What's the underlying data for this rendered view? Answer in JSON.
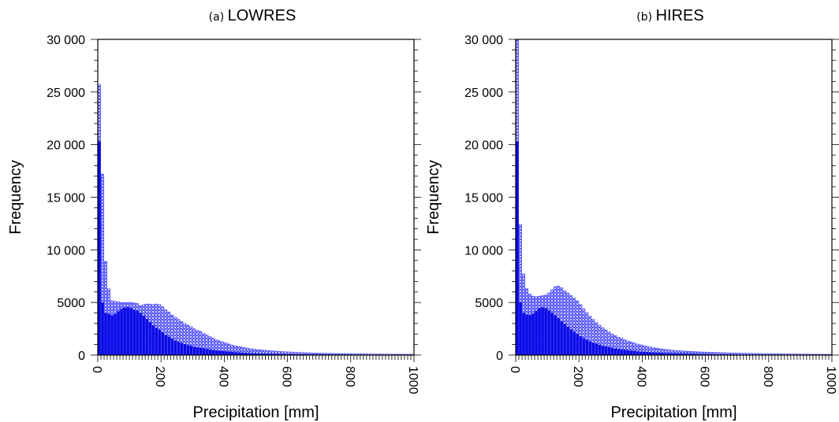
{
  "chart_data": [
    {
      "type": "bar",
      "panel_letter": "(a)",
      "title": "LOWRES",
      "xlabel": "Precipitation [mm]",
      "ylabel": "Frequency",
      "xlim": [
        0,
        1000
      ],
      "ylim": [
        0,
        30000
      ],
      "bin_width": 10,
      "xticks": [
        0,
        200,
        400,
        600,
        800,
        1000
      ],
      "yticks": [
        0,
        5000,
        10000,
        15000,
        20000,
        25000,
        30000
      ],
      "xtick_labels": [
        "0",
        "200",
        "400",
        "600",
        "800",
        "1000"
      ],
      "ytick_labels": [
        "0",
        "5000",
        "10 000",
        "15 000",
        "20 000",
        "25 000",
        "30 000"
      ],
      "series": [
        {
          "style": "hatched",
          "color": "#4a4aff",
          "x": [
            5,
            15,
            25,
            35,
            45,
            55,
            65,
            75,
            85,
            95,
            105,
            115,
            125,
            135,
            145,
            155,
            165,
            175,
            185,
            195,
            205,
            215,
            225,
            235,
            245,
            255,
            265,
            275,
            285,
            295,
            305,
            315,
            325,
            335,
            345,
            355,
            365,
            375,
            385,
            395,
            405,
            415,
            425,
            435,
            445,
            455,
            465,
            475,
            485,
            495,
            505,
            515,
            525,
            535,
            545,
            555,
            565,
            575,
            585,
            595,
            605,
            615,
            625,
            635,
            645,
            655,
            665,
            675,
            685,
            695,
            705,
            715,
            725,
            735,
            745,
            755,
            765,
            775,
            785,
            795,
            805,
            815,
            825,
            835,
            845,
            855,
            865,
            875,
            885,
            895,
            905,
            915,
            925,
            935,
            945,
            955,
            965,
            975,
            985,
            995
          ],
          "values": [
            25700,
            17200,
            8900,
            6300,
            5150,
            5100,
            5050,
            5000,
            5000,
            5000,
            5000,
            4950,
            4900,
            4700,
            4800,
            4850,
            4850,
            4800,
            4850,
            4800,
            4600,
            4300,
            4100,
            3800,
            3600,
            3400,
            3200,
            3000,
            2850,
            2700,
            2500,
            2350,
            2250,
            2050,
            1900,
            1750,
            1600,
            1450,
            1350,
            1250,
            1150,
            1050,
            950,
            880,
            820,
            760,
            700,
            650,
            600,
            560,
            520,
            490,
            460,
            430,
            410,
            390,
            370,
            350,
            330,
            315,
            300,
            285,
            270,
            255,
            240,
            230,
            220,
            210,
            200,
            190,
            180,
            175,
            170,
            165,
            160,
            155,
            150,
            145,
            140,
            135,
            130,
            125,
            120,
            115,
            112,
            108,
            104,
            100,
            97,
            94,
            91,
            88,
            86,
            84,
            82,
            80,
            78,
            76,
            74,
            72
          ]
        },
        {
          "style": "solid",
          "color": "#0a0ae6",
          "x": [
            5,
            15,
            25,
            35,
            45,
            55,
            65,
            75,
            85,
            95,
            105,
            115,
            125,
            135,
            145,
            155,
            165,
            175,
            185,
            195,
            205,
            215,
            225,
            235,
            245,
            255,
            265,
            275,
            285,
            295,
            305,
            315,
            325,
            335,
            345,
            355,
            365,
            375,
            385,
            395,
            405,
            415,
            425,
            435,
            445,
            455,
            465,
            475,
            485,
            495,
            505,
            515,
            525,
            535,
            545,
            555,
            565,
            575,
            585,
            595,
            605,
            615,
            625,
            635,
            645,
            655,
            665,
            675,
            685,
            695,
            705,
            715,
            725,
            735,
            745,
            755,
            765,
            775,
            785,
            795,
            805,
            815,
            825,
            835,
            845,
            855,
            865,
            875,
            885,
            895,
            905,
            915,
            925,
            935,
            945,
            955,
            965,
            975,
            985,
            995
          ],
          "values": [
            20300,
            5000,
            4000,
            3900,
            3800,
            3900,
            4150,
            4400,
            4500,
            4550,
            4450,
            4300,
            4200,
            4000,
            3750,
            3450,
            3150,
            2850,
            2600,
            2400,
            2150,
            1900,
            1750,
            1550,
            1400,
            1250,
            1150,
            1050,
            950,
            880,
            800,
            740,
            680,
            630,
            580,
            530,
            490,
            450,
            415,
            380,
            350,
            320,
            295,
            272,
            250,
            232,
            215,
            200,
            186,
            174,
            163,
            153,
            144,
            136,
            129,
            122,
            116,
            110,
            105,
            100,
            95,
            91,
            87,
            83,
            79,
            76,
            73,
            70,
            67,
            64,
            61,
            59,
            57,
            55,
            53,
            51,
            49,
            47,
            45,
            44,
            43,
            42,
            41,
            40,
            39,
            38,
            37,
            36,
            35,
            34,
            33,
            32,
            31,
            30,
            29,
            28,
            27,
            26,
            25,
            24
          ]
        }
      ]
    },
    {
      "type": "bar",
      "panel_letter": "(b)",
      "title": "HIRES",
      "xlabel": "Precipitation [mm]",
      "ylabel": "Frequency",
      "xlim": [
        0,
        1000
      ],
      "ylim": [
        0,
        30000
      ],
      "bin_width": 10,
      "xticks": [
        0,
        200,
        400,
        600,
        800,
        1000
      ],
      "yticks": [
        0,
        5000,
        10000,
        15000,
        20000,
        25000,
        30000
      ],
      "xtick_labels": [
        "0",
        "200",
        "400",
        "600",
        "800",
        "1000"
      ],
      "ytick_labels": [
        "0",
        "5000",
        "10 000",
        "15 000",
        "20 000",
        "25 000",
        "30 000"
      ],
      "series": [
        {
          "style": "hatched",
          "color": "#4a4aff",
          "x": [
            5,
            15,
            25,
            35,
            45,
            55,
            65,
            75,
            85,
            95,
            105,
            115,
            125,
            135,
            145,
            155,
            165,
            175,
            185,
            195,
            205,
            215,
            225,
            235,
            245,
            255,
            265,
            275,
            285,
            295,
            305,
            315,
            325,
            335,
            345,
            355,
            365,
            375,
            385,
            395,
            405,
            415,
            425,
            435,
            445,
            455,
            465,
            475,
            485,
            495,
            505,
            515,
            525,
            535,
            545,
            555,
            565,
            575,
            585,
            595,
            605,
            615,
            625,
            635,
            645,
            655,
            665,
            675,
            685,
            695,
            705,
            715,
            725,
            735,
            745,
            755,
            765,
            775,
            785,
            795,
            805,
            815,
            825,
            835,
            845,
            855,
            865,
            875,
            885,
            895,
            905,
            915,
            925,
            935,
            945,
            955,
            965,
            975,
            985,
            995
          ],
          "values": [
            30000,
            12400,
            7700,
            6300,
            5800,
            5600,
            5550,
            5600,
            5650,
            5700,
            5900,
            6200,
            6500,
            6550,
            6400,
            6100,
            5900,
            5650,
            5400,
            5150,
            4800,
            4400,
            4050,
            3700,
            3400,
            3100,
            2850,
            2600,
            2400,
            2200,
            2000,
            1850,
            1700,
            1600,
            1450,
            1350,
            1250,
            1150,
            1050,
            980,
            900,
            830,
            770,
            710,
            660,
            610,
            570,
            530,
            500,
            470,
            440,
            420,
            400,
            380,
            360,
            345,
            330,
            315,
            300,
            290,
            280,
            270,
            260,
            250,
            240,
            230,
            220,
            212,
            205,
            198,
            190,
            183,
            176,
            170,
            164,
            158,
            152,
            147,
            142,
            137,
            132,
            128,
            124,
            120,
            116,
            112,
            108,
            104,
            100,
            97,
            94,
            91,
            88,
            85,
            82,
            80,
            78,
            76,
            74,
            72
          ]
        },
        {
          "style": "solid",
          "color": "#0a0ae6",
          "x": [
            5,
            15,
            25,
            35,
            45,
            55,
            65,
            75,
            85,
            95,
            105,
            115,
            125,
            135,
            145,
            155,
            165,
            175,
            185,
            195,
            205,
            215,
            225,
            235,
            245,
            255,
            265,
            275,
            285,
            295,
            305,
            315,
            325,
            335,
            345,
            355,
            365,
            375,
            385,
            395,
            405,
            415,
            425,
            435,
            445,
            455,
            465,
            475,
            485,
            495,
            505,
            515,
            525,
            535,
            545,
            555,
            565,
            575,
            585,
            595,
            605,
            615,
            625,
            635,
            645,
            655,
            665,
            675,
            685,
            695,
            705,
            715,
            725,
            735,
            745,
            755,
            765,
            775,
            785,
            795,
            805,
            815,
            825,
            835,
            845,
            855,
            865,
            875,
            885,
            895,
            905,
            915,
            925,
            935,
            945,
            955,
            965,
            975,
            985,
            995
          ],
          "values": [
            20300,
            5000,
            4000,
            3850,
            3800,
            3950,
            4200,
            4450,
            4550,
            4450,
            4250,
            4000,
            3750,
            3500,
            3200,
            2950,
            2700,
            2450,
            2200,
            2000,
            1800,
            1600,
            1450,
            1300,
            1180,
            1070,
            980,
            900,
            820,
            750,
            690,
            630,
            580,
            535,
            495,
            455,
            420,
            390,
            360,
            335,
            310,
            288,
            268,
            250,
            233,
            218,
            204,
            191,
            179,
            168,
            158,
            149,
            140,
            132,
            125,
            118,
            112,
            106,
            101,
            96,
            91,
            87,
            83,
            79,
            76,
            73,
            70,
            67,
            64,
            61,
            59,
            57,
            55,
            53,
            51,
            49,
            47,
            45,
            44,
            43,
            42,
            41,
            40,
            39,
            38,
            37,
            36,
            35,
            34,
            33,
            32,
            31,
            30,
            29,
            28,
            27,
            26,
            25,
            24,
            23
          ]
        }
      ]
    }
  ]
}
